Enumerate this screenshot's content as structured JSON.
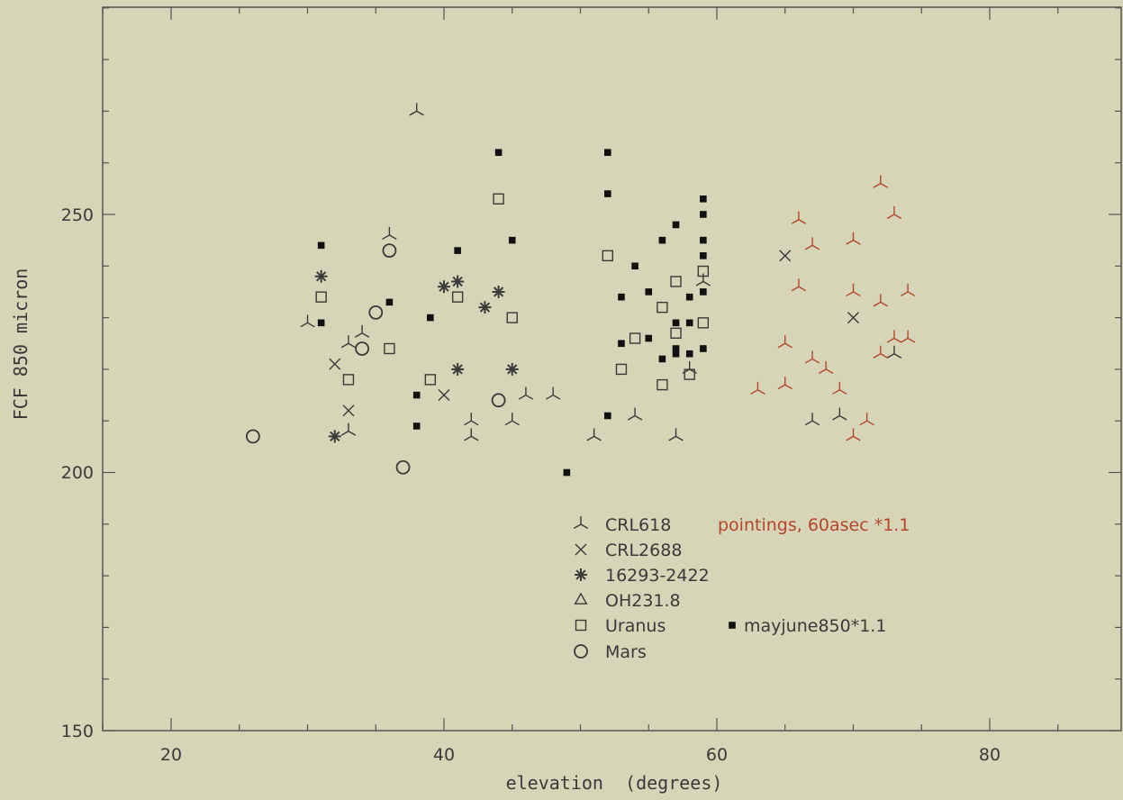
{
  "chart_data": {
    "type": "scatter",
    "xlabel": "elevation  (degrees)",
    "ylabel": "FCF 850 micron",
    "xlim": [
      15,
      90
    ],
    "ylim": [
      150,
      290
    ],
    "x_ticks": [
      "20",
      "40",
      "60",
      "80"
    ],
    "y_ticks": [
      "150",
      "200",
      "250"
    ],
    "grid": false,
    "legend_position": "bottom-center",
    "annotations": [
      "pointings, 60asec *1.1"
    ],
    "colors": {
      "background": "#d7d5b7",
      "ink": "#3a3a3a",
      "pointings": "#b5462a"
    },
    "series": [
      {
        "name": "CRL618",
        "marker": "tri",
        "points": [
          [
            30,
            229
          ],
          [
            33,
            225
          ],
          [
            34,
            227
          ],
          [
            33,
            208
          ],
          [
            36,
            246
          ],
          [
            38,
            270
          ],
          [
            42,
            210
          ],
          [
            42,
            207
          ],
          [
            45,
            210
          ],
          [
            46,
            215
          ],
          [
            48,
            215
          ],
          [
            51,
            207
          ],
          [
            54,
            211
          ],
          [
            57,
            207
          ],
          [
            59,
            237
          ],
          [
            58,
            220
          ],
          [
            67,
            210
          ],
          [
            69,
            211
          ],
          [
            73,
            223
          ]
        ]
      },
      {
        "name": "CRL2688",
        "marker": "x",
        "points": [
          [
            32,
            221
          ],
          [
            33,
            212
          ],
          [
            40,
            215
          ],
          [
            65,
            242
          ],
          [
            70,
            230
          ]
        ]
      },
      {
        "name": "16293-2422",
        "marker": "star",
        "points": [
          [
            31,
            238
          ],
          [
            32,
            207
          ],
          [
            40,
            236
          ],
          [
            41,
            237
          ],
          [
            43,
            232
          ],
          [
            44,
            235
          ],
          [
            41,
            220
          ],
          [
            45,
            220
          ]
        ]
      },
      {
        "name": "OH231.8",
        "marker": "triangle",
        "points": []
      },
      {
        "name": "Uranus",
        "marker": "square",
        "points": [
          [
            31,
            234
          ],
          [
            33,
            218
          ],
          [
            36,
            224
          ],
          [
            39,
            218
          ],
          [
            41,
            234
          ],
          [
            44,
            253
          ],
          [
            45,
            230
          ],
          [
            52,
            242
          ],
          [
            53,
            220
          ],
          [
            54,
            226
          ],
          [
            56,
            232
          ],
          [
            56,
            217
          ],
          [
            57,
            237
          ],
          [
            57,
            227
          ],
          [
            58,
            219
          ],
          [
            59,
            239
          ],
          [
            59,
            229
          ]
        ]
      },
      {
        "name": "Mars",
        "marker": "circle",
        "points": [
          [
            26,
            207
          ],
          [
            34,
            224
          ],
          [
            35,
            231
          ],
          [
            36,
            243
          ],
          [
            37,
            201
          ],
          [
            44,
            214
          ]
        ]
      },
      {
        "name": "mayjune850*1.1",
        "marker": "filled-square",
        "points": [
          [
            31,
            244
          ],
          [
            31,
            229
          ],
          [
            36,
            233
          ],
          [
            38,
            215
          ],
          [
            38,
            209
          ],
          [
            39,
            230
          ],
          [
            41,
            243
          ],
          [
            44,
            262
          ],
          [
            45,
            245
          ],
          [
            49,
            200
          ],
          [
            52,
            262
          ],
          [
            52,
            254
          ],
          [
            52,
            211
          ],
          [
            53,
            234
          ],
          [
            53,
            225
          ],
          [
            54,
            240
          ],
          [
            55,
            226
          ],
          [
            55,
            235
          ],
          [
            56,
            245
          ],
          [
            56,
            222
          ],
          [
            57,
            248
          ],
          [
            57,
            229
          ],
          [
            57,
            224
          ],
          [
            57,
            223
          ],
          [
            58,
            234
          ],
          [
            58,
            229
          ],
          [
            58,
            223
          ],
          [
            59,
            253
          ],
          [
            59,
            250
          ],
          [
            59,
            245
          ],
          [
            59,
            242
          ],
          [
            59,
            235
          ],
          [
            59,
            224
          ]
        ]
      },
      {
        "name": "pointings, 60asec *1.1",
        "marker": "tri",
        "points": [
          [
            63,
            216
          ],
          [
            65,
            225
          ],
          [
            65,
            217
          ],
          [
            66,
            249
          ],
          [
            66,
            236
          ],
          [
            67,
            244
          ],
          [
            67,
            222
          ],
          [
            68,
            220
          ],
          [
            69,
            216
          ],
          [
            70,
            245
          ],
          [
            70,
            235
          ],
          [
            70,
            207
          ],
          [
            71,
            210
          ],
          [
            72,
            256
          ],
          [
            72,
            233
          ],
          [
            72,
            223
          ],
          [
            73,
            250
          ],
          [
            73,
            226
          ],
          [
            74,
            235
          ],
          [
            74,
            226
          ]
        ]
      }
    ],
    "legend": {
      "entries": [
        {
          "label": "CRL618",
          "marker": "tri"
        },
        {
          "label": "CRL2688",
          "marker": "x"
        },
        {
          "label": "16293-2422",
          "marker": "star"
        },
        {
          "label": "OH231.8",
          "marker": "triangle"
        },
        {
          "label": "Uranus",
          "marker": "square"
        },
        {
          "label": "Mars",
          "marker": "circle"
        }
      ],
      "extra_label": "mayjune850*1.1",
      "note": "pointings, 60asec *1.1"
    }
  }
}
